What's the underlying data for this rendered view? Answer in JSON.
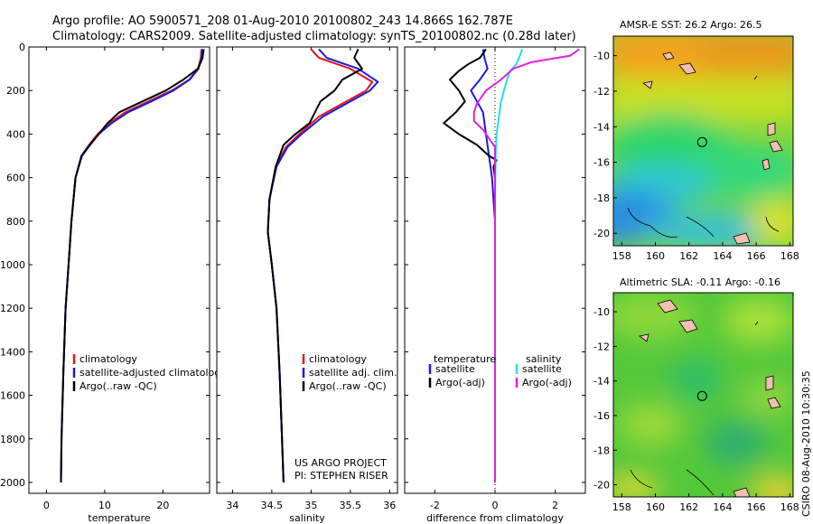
{
  "header": {
    "line1": "Argo profile: AO 5900571_208 01-Aug-2010 20100802_243 14.866S 162.787E",
    "line2": "Climatology: CARS2009. Satellite-adjusted climatology: synTS_20100802.nc (0.28d later)"
  },
  "side_note": "CSIRO 08-Aug-2010 10:30:35",
  "credits": {
    "line1": "US ARGO PROJECT",
    "line2": "PI: STEPHEN RISER"
  },
  "colors": {
    "climatology": "#e8141e",
    "satellite": "#1a1ae6",
    "argo": "#000000",
    "sat_salinity": "#22e0e6",
    "argo_salinity": "#e020e0"
  },
  "chart_data": [
    {
      "type": "line",
      "id": "temperature",
      "xlabel": "temperature",
      "ylabel": "",
      "xlim": [
        -3,
        28
      ],
      "ylim": [
        2050,
        0
      ],
      "xticks": [
        0,
        10,
        20
      ],
      "yticks": [
        0,
        200,
        400,
        600,
        800,
        1000,
        1200,
        1400,
        1600,
        1800,
        2000
      ],
      "legend": [
        "climatology",
        "satellite-adjusted climatology",
        "Argo(..raw -QC)"
      ],
      "series": [
        {
          "name": "climatology",
          "color": "#e8141e",
          "x": [
            26.6,
            26.5,
            26.0,
            24.5,
            21.5,
            17.5,
            13.5,
            10.8,
            8.8,
            7.3,
            6.0,
            5.0,
            4.3,
            3.8,
            3.3,
            2.9,
            2.6,
            2.5
          ],
          "y": [
            10,
            50,
            100,
            150,
            200,
            250,
            300,
            350,
            400,
            450,
            500,
            600,
            800,
            1000,
            1200,
            1500,
            1800,
            2000
          ]
        },
        {
          "name": "satellite-adjusted climatology",
          "color": "#1a1ae6",
          "x": [
            26.7,
            26.6,
            26.1,
            24.6,
            21.8,
            18.0,
            14.0,
            11.2,
            9.0,
            7.4,
            6.0,
            5.0,
            4.3,
            3.8,
            3.3,
            2.9,
            2.6,
            2.5
          ],
          "y": [
            10,
            50,
            100,
            150,
            200,
            250,
            300,
            350,
            400,
            450,
            500,
            600,
            800,
            1000,
            1200,
            1500,
            1800,
            2000
          ]
        },
        {
          "name": "Argo(..raw -QC)",
          "color": "#000000",
          "x": [
            27.0,
            26.8,
            26.0,
            23.5,
            20.5,
            16.5,
            12.5,
            10.5,
            9.0,
            7.5,
            6.1,
            5.0,
            4.3,
            3.8,
            3.3,
            2.9,
            2.6,
            2.5
          ],
          "y": [
            10,
            50,
            100,
            150,
            200,
            250,
            300,
            350,
            400,
            450,
            500,
            600,
            800,
            1000,
            1200,
            1500,
            1800,
            2000
          ]
        }
      ]
    },
    {
      "type": "line",
      "id": "salinity",
      "xlabel": "salinity",
      "ylabel": "",
      "xlim": [
        33.8,
        36.1
      ],
      "ylim": [
        2050,
        0
      ],
      "xticks": [
        34,
        34.5,
        35,
        35.5,
        36
      ],
      "yticks": [],
      "legend": [
        "climatology",
        "satellite adj. clim.",
        "Argo(..raw -QC)"
      ],
      "series": [
        {
          "name": "climatology",
          "color": "#e8141e",
          "x": [
            35.0,
            35.1,
            35.5,
            35.78,
            35.7,
            35.45,
            35.1,
            34.85,
            34.68,
            34.55,
            34.47,
            34.45,
            34.5,
            34.56,
            34.6,
            34.63,
            34.65
          ],
          "y": [
            10,
            50,
            100,
            160,
            200,
            250,
            320,
            400,
            460,
            550,
            700,
            850,
            1000,
            1200,
            1500,
            1800,
            2000
          ]
        },
        {
          "name": "satellite adj. clim.",
          "color": "#1a1ae6",
          "x": [
            35.1,
            35.2,
            35.6,
            35.85,
            35.75,
            35.5,
            35.15,
            34.88,
            34.7,
            34.56,
            34.47,
            34.45,
            34.5,
            34.56,
            34.6,
            34.63,
            34.65
          ],
          "y": [
            10,
            50,
            100,
            160,
            200,
            250,
            320,
            400,
            460,
            550,
            700,
            850,
            1000,
            1200,
            1500,
            1800,
            2000
          ]
        },
        {
          "name": "Argo(..raw -QC)",
          "color": "#000000",
          "x": [
            35.6,
            35.55,
            35.65,
            35.4,
            35.3,
            35.12,
            35.05,
            34.98,
            34.8,
            34.65,
            34.55,
            34.47,
            34.45,
            34.5,
            34.56,
            34.6,
            34.63,
            34.65
          ],
          "y": [
            10,
            50,
            100,
            150,
            200,
            250,
            300,
            350,
            400,
            450,
            550,
            700,
            850,
            1000,
            1200,
            1500,
            1800,
            2000
          ]
        }
      ]
    },
    {
      "type": "line",
      "id": "difference",
      "xlabel": "difference from climatology",
      "ylabel": "",
      "xlim": [
        -3,
        3
      ],
      "ylim": [
        2050,
        0
      ],
      "xticks": [
        -2,
        0,
        2
      ],
      "yticks": [],
      "legend_left_title": "temperature",
      "legend_right_title": "salinity",
      "legend": [
        "satellite",
        "Argo(-adj)",
        "satellite",
        "Argo(-adj)"
      ],
      "series": [
        {
          "name": "satellite",
          "color": "#1a1ae6",
          "x": [
            -0.4,
            -0.35,
            -0.25,
            -0.5,
            -0.8,
            -0.6,
            -0.4,
            -0.3,
            -0.2,
            -0.15,
            -0.1,
            -0.05,
            0,
            0,
            0
          ],
          "y": [
            10,
            50,
            100,
            150,
            200,
            250,
            300,
            400,
            500,
            550,
            600,
            700,
            800,
            1000,
            2000
          ]
        },
        {
          "name": "Argo(-adj)",
          "color": "#000000",
          "x": [
            -0.3,
            -0.5,
            -0.9,
            -1.2,
            -1.5,
            -1.2,
            -1.0,
            -1.3,
            -1.7,
            -1.2,
            -0.6,
            -0.2,
            0.05,
            -0.05,
            0,
            0,
            0
          ],
          "y": [
            10,
            50,
            80,
            110,
            150,
            200,
            250,
            300,
            350,
            400,
            450,
            500,
            520,
            550,
            600,
            800,
            2000
          ]
        },
        {
          "name": "satellite",
          "color": "#22e0e6",
          "x": [
            0.9,
            0.8,
            0.7,
            0.5,
            0.4,
            0.3,
            0.2,
            0.15,
            0.1,
            0.05,
            0.02,
            0,
            0
          ],
          "y": [
            10,
            50,
            80,
            110,
            150,
            200,
            250,
            300,
            350,
            400,
            500,
            700,
            2000
          ]
        },
        {
          "name": "Argo(-adj)",
          "color": "#e020e0",
          "x": [
            2.8,
            2.5,
            1.2,
            0.6,
            0.2,
            -0.3,
            -0.6,
            -0.7,
            -0.7,
            -0.4,
            -0.2,
            0,
            0
          ],
          "y": [
            10,
            40,
            70,
            100,
            150,
            200,
            260,
            300,
            340,
            380,
            420,
            460,
            2000
          ]
        }
      ]
    },
    {
      "type": "heatmap",
      "id": "sst_map",
      "title": "AMSR-E SST: 26.2 Argo: 26.5",
      "xlim": [
        157.5,
        168.2
      ],
      "ylim": [
        -20.7,
        -8.9
      ],
      "xticks": [
        158,
        160,
        162,
        164,
        166,
        168
      ],
      "yticks": [
        -10,
        -12,
        -14,
        -16,
        -18,
        -20
      ],
      "argo_position": {
        "lon": 162.787,
        "lat": -14.866
      }
    },
    {
      "type": "heatmap",
      "id": "sla_map",
      "title": "Altimetric SLA: -0.11 Argo: -0.16",
      "xlim": [
        157.5,
        168.2
      ],
      "ylim": [
        -20.7,
        -8.9
      ],
      "xticks": [
        158,
        160,
        162,
        164,
        166,
        168
      ],
      "yticks": [
        -10,
        -12,
        -14,
        -16,
        -18,
        -20
      ],
      "argo_position": {
        "lon": 162.787,
        "lat": -14.866
      }
    }
  ]
}
